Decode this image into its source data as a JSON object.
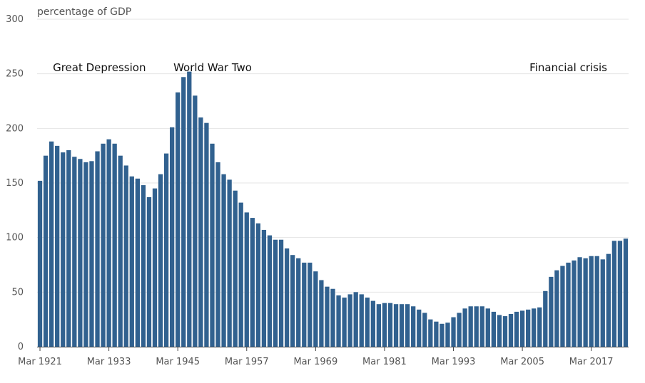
{
  "chart_data": {
    "type": "bar",
    "ylabel": "percentage of GDP",
    "ylim": [
      0,
      300
    ],
    "y_ticks": [
      0,
      50,
      100,
      150,
      200,
      250,
      300
    ],
    "x_tick_labels": [
      "Mar 1921",
      "Mar 1933",
      "Mar 1945",
      "Mar 1957",
      "Mar 1969",
      "Mar 1981",
      "Mar 1993",
      "Mar 2005",
      "Mar 2017"
    ],
    "x_tick_indices": [
      0,
      12,
      24,
      36,
      48,
      60,
      72,
      84,
      96
    ],
    "bar_color": "#31618f",
    "annotations": [
      {
        "text": "Great Depression",
        "index": 2
      },
      {
        "text": "World War Two",
        "index": 23
      },
      {
        "text": "Financial crisis",
        "index": 85
      }
    ],
    "series": [
      {
        "values": [
          152,
          175,
          188,
          184,
          178,
          180,
          174,
          172,
          169,
          170,
          179,
          186,
          190,
          186,
          175,
          166,
          156,
          154,
          148,
          137,
          145,
          158,
          177,
          201,
          233,
          247,
          252,
          230,
          210,
          205,
          186,
          169,
          158,
          153,
          143,
          132,
          123,
          118,
          113,
          107,
          102,
          98,
          98,
          90,
          84,
          81,
          77,
          77,
          69,
          61,
          55,
          53,
          47,
          45,
          48,
          50,
          48,
          45,
          42,
          39,
          40,
          40,
          39,
          39,
          39,
          37,
          34,
          31,
          25,
          23,
          21,
          22,
          27,
          31,
          35,
          37,
          37,
          37,
          35,
          32,
          29,
          28,
          30,
          32,
          33,
          34,
          35,
          36,
          51,
          64,
          70,
          74,
          77,
          79,
          82,
          81,
          83,
          83,
          80,
          85,
          97,
          97,
          99
        ]
      }
    ]
  }
}
